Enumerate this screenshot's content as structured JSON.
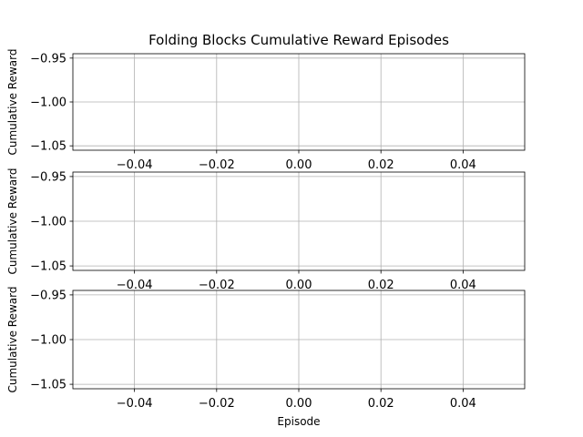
{
  "chart_data": {
    "type": "line",
    "title": "Folding Blocks Cumulative Reward Episodes",
    "grid": true,
    "colors": {
      "grid": "#b0b0b0",
      "spine": "#000000",
      "text": "#000000"
    },
    "subplots": [
      {
        "ylabel": "Cumulative Reward",
        "xlabel": "",
        "xlim": [
          -0.055,
          0.055
        ],
        "ylim": [
          -1.055,
          -0.945
        ],
        "xticks": [
          -0.04,
          -0.02,
          0.0,
          0.02,
          0.04
        ],
        "xtick_labels": [
          "−0.04",
          "−0.02",
          "0.00",
          "0.02",
          "0.04"
        ],
        "yticks": [
          -0.95,
          -1.0,
          -1.05
        ],
        "ytick_labels": [
          "−0.95",
          "−1.00",
          "−1.05"
        ],
        "series": [
          {
            "x": [],
            "y": []
          }
        ]
      },
      {
        "ylabel": "Cumulative Reward",
        "xlabel": "",
        "xlim": [
          -0.055,
          0.055
        ],
        "ylim": [
          -1.055,
          -0.945
        ],
        "xticks": [
          -0.04,
          -0.02,
          0.0,
          0.02,
          0.04
        ],
        "xtick_labels": [
          "−0.04",
          "−0.02",
          "0.00",
          "0.02",
          "0.04"
        ],
        "yticks": [
          -0.95,
          -1.0,
          -1.05
        ],
        "ytick_labels": [
          "−0.95",
          "−1.00",
          "−1.05"
        ],
        "series": [
          {
            "x": [],
            "y": []
          }
        ]
      },
      {
        "ylabel": "Cumulative Reward",
        "xlabel": "Episode",
        "xlim": [
          -0.055,
          0.055
        ],
        "ylim": [
          -1.055,
          -0.945
        ],
        "xticks": [
          -0.04,
          -0.02,
          0.0,
          0.02,
          0.04
        ],
        "xtick_labels": [
          "−0.04",
          "−0.02",
          "0.00",
          "0.02",
          "0.04"
        ],
        "yticks": [
          -0.95,
          -1.0,
          -1.05
        ],
        "ytick_labels": [
          "−0.95",
          "−1.00",
          "−1.05"
        ],
        "series": [
          {
            "x": [],
            "y": []
          }
        ]
      }
    ]
  }
}
